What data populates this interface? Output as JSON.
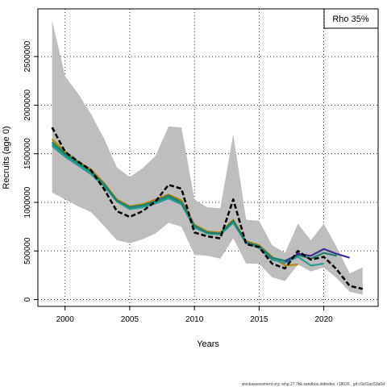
{
  "chart_data": {
    "type": "line",
    "title": "",
    "xlabel": "Years",
    "ylabel": "Recruits (age 0)",
    "xlim": [
      1997.9,
      2024.2
    ],
    "ylim": [
      -70000,
      2990000
    ],
    "x_ticks": [
      2000,
      2005,
      2010,
      2015,
      2020
    ],
    "y_ticks": [
      0,
      500000,
      1000000,
      1500000,
      2000000,
      2500000
    ],
    "y_tick_labels": [
      "0",
      "500000",
      "1000000",
      "1500000",
      "2000000",
      "2500000"
    ],
    "grid": true,
    "legend": {
      "text": "Rho 35%",
      "placement": "top-right"
    },
    "footer": "stockassessment.org, whg.27.7bk.sandbox.oldindex, r18026 , git:c9c61ac53a0d",
    "band": {
      "name": "confidence interval",
      "color": "#bebebe",
      "x": [
        1999,
        2000,
        2001,
        2002,
        2003,
        2004,
        2005,
        2006,
        2007,
        2008,
        2009,
        2010,
        2011,
        2012,
        2013,
        2014,
        2015,
        2016,
        2017,
        2018,
        2019,
        2020,
        2021,
        2022,
        2023
      ],
      "upper": [
        2870000,
        2300000,
        2120000,
        1910000,
        1660000,
        1360000,
        1260000,
        1350000,
        1480000,
        1780000,
        1770000,
        1030000,
        950000,
        940000,
        1700000,
        820000,
        810000,
        560000,
        480000,
        780000,
        610000,
        780000,
        540000,
        270000,
        330000
      ],
      "lower": [
        1100000,
        1030000,
        960000,
        900000,
        760000,
        610000,
        580000,
        620000,
        680000,
        790000,
        750000,
        460000,
        450000,
        420000,
        630000,
        370000,
        370000,
        230000,
        190000,
        360000,
        290000,
        330000,
        220000,
        80000,
        50000
      ]
    },
    "series": [
      {
        "color": "#1b9e77",
        "x": [
          1999,
          2000,
          2001,
          2002,
          2003,
          2004,
          2005,
          2006,
          2007,
          2008,
          2009,
          2010,
          2011,
          2012,
          2013,
          2014,
          2015,
          2016,
          2017
        ],
        "values": [
          1600000,
          1490000,
          1400000,
          1310000,
          1180000,
          1020000,
          940000,
          960000,
          1000000,
          1050000,
          990000,
          750000,
          690000,
          680000,
          800000,
          590000,
          540000,
          420000,
          370000
        ]
      },
      {
        "color": "#b8860b",
        "x": [
          1999,
          2000,
          2001,
          2002,
          2003,
          2004,
          2005,
          2006,
          2007,
          2008,
          2009,
          2010,
          2011,
          2012,
          2013,
          2014,
          2015,
          2016,
          2017,
          2018
        ],
        "values": [
          1650000,
          1520000,
          1420000,
          1340000,
          1200000,
          1030000,
          960000,
          980000,
          1030000,
          1080000,
          1020000,
          770000,
          700000,
          690000,
          820000,
          600000,
          560000,
          440000,
          350000,
          360000
        ]
      },
      {
        "color": "#2a9a8f",
        "x": [
          1999,
          2000,
          2001,
          2002,
          2003,
          2004,
          2005,
          2006,
          2007,
          2008,
          2009,
          2010,
          2011,
          2012,
          2013,
          2014,
          2015,
          2016,
          2017,
          2018,
          2019,
          2020
        ],
        "values": [
          1580000,
          1470000,
          1380000,
          1290000,
          1170000,
          1010000,
          930000,
          950000,
          990000,
          1040000,
          980000,
          740000,
          680000,
          670000,
          790000,
          580000,
          530000,
          410000,
          380000,
          440000,
          350000,
          370000
        ]
      },
      {
        "color": "#1f7f6f",
        "x": [
          1999,
          2000,
          2001,
          2002,
          2003,
          2004,
          2005,
          2006,
          2007,
          2008,
          2009,
          2010,
          2011,
          2012,
          2013,
          2014,
          2015,
          2016,
          2017,
          2018,
          2019,
          2020,
          2021
        ],
        "values": [
          1620000,
          1500000,
          1410000,
          1320000,
          1190000,
          1020000,
          950000,
          970000,
          1010000,
          1070000,
          1000000,
          760000,
          690000,
          680000,
          810000,
          590000,
          550000,
          430000,
          400000,
          460000,
          420000,
          480000,
          450000
        ]
      },
      {
        "color": "#3b2d8f",
        "x": [
          2017,
          2018,
          2019,
          2020,
          2021,
          2022
        ],
        "values": [
          390000,
          470000,
          450000,
          520000,
          470000,
          430000
        ]
      },
      {
        "color": "#000000",
        "dashed": true,
        "x": [
          1999,
          2000,
          2001,
          2002,
          2003,
          2004,
          2005,
          2006,
          2007,
          2008,
          2009,
          2010,
          2011,
          2012,
          2013,
          2014,
          2015,
          2016,
          2017,
          2018,
          2019,
          2020,
          2021,
          2022,
          2023
        ],
        "values": [
          1770000,
          1520000,
          1420000,
          1330000,
          1140000,
          910000,
          850000,
          910000,
          1010000,
          1180000,
          1140000,
          690000,
          650000,
          630000,
          1030000,
          570000,
          540000,
          370000,
          320000,
          500000,
          410000,
          440000,
          310000,
          140000,
          110000
        ]
      }
    ]
  }
}
